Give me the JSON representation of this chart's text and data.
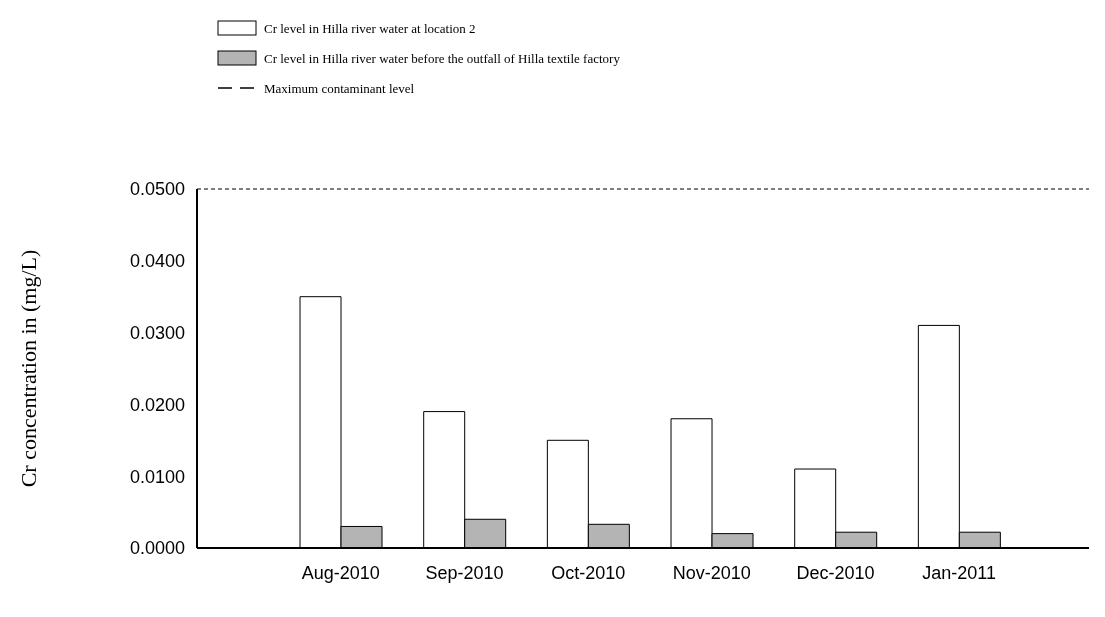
{
  "chart_data": {
    "type": "bar",
    "ylabel": "Cr concentration in (mg/L)",
    "categories": [
      "Aug-2010",
      "Sep-2010",
      "Oct-2010",
      "Nov-2010",
      "Dec-2010",
      "Jan-2011"
    ],
    "series": [
      {
        "name": "Cr level in Hilla river water at location 2",
        "color": "#ffffff",
        "values": [
          0.035,
          0.019,
          0.015,
          0.018,
          0.011,
          0.031
        ]
      },
      {
        "name": "Cr level in Hilla river water before the outfall of Hilla textile factory",
        "color": "#b4b4b4",
        "values": [
          0.003,
          0.004,
          0.0033,
          0.002,
          0.0022,
          0.0022
        ]
      }
    ],
    "ylim": [
      0,
      0.05
    ],
    "yticks": [
      {
        "value": 0,
        "label": "0.0000"
      },
      {
        "value": 0.01,
        "label": "0.0100"
      },
      {
        "value": 0.02,
        "label": "0.0200"
      },
      {
        "value": 0.03,
        "label": "0.0300"
      },
      {
        "value": 0.04,
        "label": "0.0400"
      },
      {
        "value": 0.05,
        "label": "0.0500"
      }
    ],
    "ref_lines": [
      {
        "axis": "y",
        "value": 0.05,
        "label": "Maximum contaminant level",
        "line_style": "dashed",
        "color": "#000000"
      }
    ],
    "grid": false,
    "legend": "top"
  }
}
